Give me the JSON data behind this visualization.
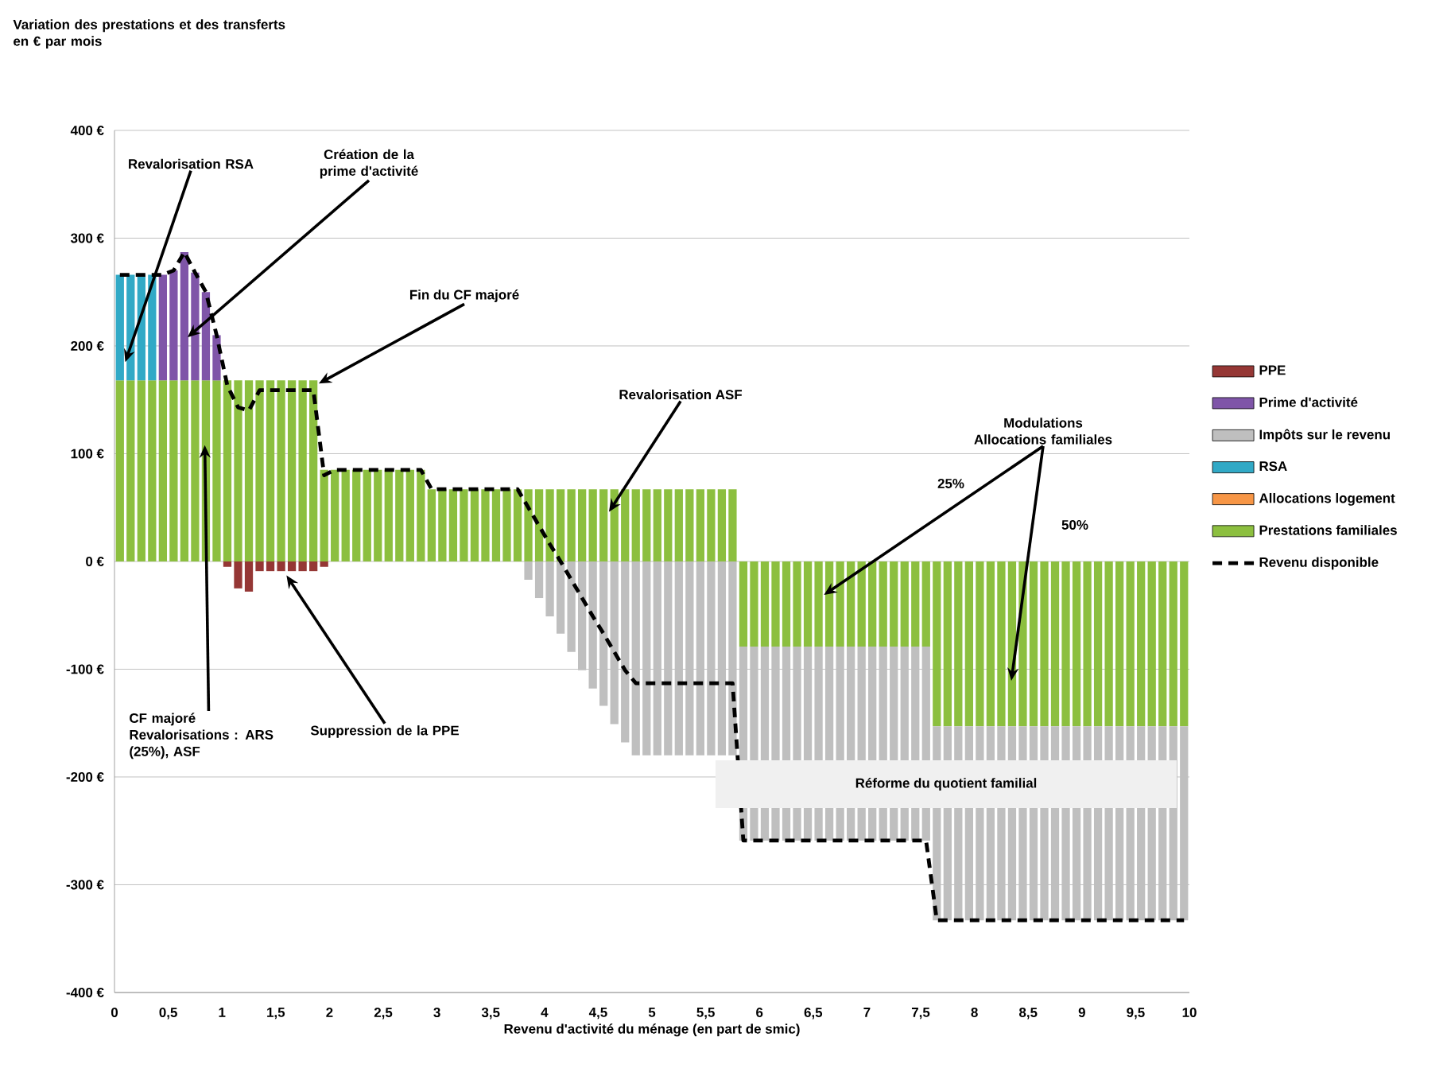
{
  "chart_data": {
    "type": "bar",
    "stacked": true,
    "title": "Variation des prestations et des transferts en € par mois",
    "xlabel": "Revenu d'activité du ménage (en part de smic)",
    "xlim": [
      0,
      10
    ],
    "ylim": [
      -400,
      400
    ],
    "xticks": [
      0,
      {
        "value": 0.5,
        "label": "0,5"
      },
      1,
      {
        "value": 1.5,
        "label": "1,5"
      },
      2,
      {
        "value": 2.5,
        "label": "2,5"
      },
      3,
      {
        "value": 3.5,
        "label": "3,5"
      },
      4,
      {
        "value": 4.5,
        "label": "4,5"
      },
      5,
      {
        "value": 5.5,
        "label": "5,5"
      },
      6,
      {
        "value": 6.5,
        "label": "6,5"
      },
      7,
      {
        "value": 7.5,
        "label": "7,5"
      },
      8,
      {
        "value": 8.5,
        "label": "8,5"
      },
      9,
      {
        "value": 9.5,
        "label": "9,5"
      },
      10
    ],
    "yticks": [
      {
        "value": -400,
        "label": "-400 €"
      },
      {
        "value": -300,
        "label": "-300 €"
      },
      {
        "value": -200,
        "label": "-200 €"
      },
      {
        "value": -100,
        "label": "-100 €"
      },
      {
        "value": 0,
        "label": "0 €"
      },
      {
        "value": 100,
        "label": "100 €"
      },
      {
        "value": 200,
        "label": "200 €"
      },
      {
        "value": 300,
        "label": "300 €"
      },
      {
        "value": 400,
        "label": "400 €"
      }
    ],
    "grid": "y",
    "legend": "right",
    "line_style": "dashed",
    "x": [
      0.05,
      0.15,
      0.25,
      0.35,
      0.45,
      0.55,
      0.65,
      0.75,
      0.85,
      0.95,
      1.05,
      1.15,
      1.25,
      1.35,
      1.45,
      1.55,
      1.65,
      1.75,
      1.85,
      1.95,
      2.05,
      2.15,
      2.25,
      2.35,
      2.45,
      2.55,
      2.65,
      2.75,
      2.85,
      2.95,
      3.05,
      3.15,
      3.25,
      3.35,
      3.45,
      3.55,
      3.65,
      3.75,
      3.85,
      3.95,
      4.05,
      4.15,
      4.25,
      4.35,
      4.45,
      4.55,
      4.65,
      4.75,
      4.85,
      4.95,
      5.05,
      5.15,
      5.25,
      5.35,
      5.45,
      5.55,
      5.65,
      5.75,
      5.85,
      5.95,
      6.05,
      6.15,
      6.25,
      6.35,
      6.45,
      6.55,
      6.65,
      6.75,
      6.85,
      6.95,
      7.05,
      7.15,
      7.25,
      7.35,
      7.45,
      7.55,
      7.65,
      7.75,
      7.85,
      7.95,
      8.05,
      8.15,
      8.25,
      8.35,
      8.45,
      8.55,
      8.65,
      8.75,
      8.85,
      8.95,
      9.05,
      9.15,
      9.25,
      9.35,
      9.45,
      9.55,
      9.65,
      9.75,
      9.85,
      9.95
    ],
    "series": [
      {
        "name": "Prestations familiales",
        "color": "#8cbf3f",
        "values": [
          168,
          168,
          168,
          168,
          168,
          168,
          168,
          168,
          168,
          168,
          168,
          168,
          168,
          168,
          168,
          168,
          168,
          168,
          168,
          85,
          85,
          85,
          85,
          85,
          85,
          85,
          85,
          85,
          85,
          67,
          67,
          67,
          67,
          67,
          67,
          67,
          67,
          67,
          67,
          67,
          67,
          67,
          67,
          67,
          67,
          67,
          67,
          67,
          67,
          67,
          67,
          67,
          67,
          67,
          67,
          67,
          67,
          67,
          -79,
          -79,
          -79,
          -79,
          -79,
          -79,
          -79,
          -79,
          -79,
          -79,
          -79,
          -79,
          -79,
          -79,
          -79,
          -79,
          -79,
          -79,
          -153,
          -153,
          -153,
          -153,
          -153,
          -153,
          -153,
          -153,
          -153,
          -153,
          -153,
          -153,
          -153,
          -153,
          -153,
          -153,
          -153,
          -153,
          -153,
          -153,
          -153,
          -153,
          -153,
          -153
        ]
      },
      {
        "name": "Allocations logement",
        "color": "#f79646",
        "values": [
          null,
          null,
          null,
          null,
          null,
          null,
          null,
          null,
          null,
          null,
          null,
          null,
          null,
          null,
          null,
          null,
          null,
          null,
          null,
          null,
          null,
          null,
          null,
          null,
          null,
          null,
          null,
          null,
          null,
          null,
          null,
          null,
          null,
          null,
          null,
          null,
          null,
          null,
          null,
          null,
          null,
          null,
          null,
          null,
          null,
          null,
          null,
          null,
          null,
          null,
          null,
          null,
          null,
          null,
          null,
          null,
          null,
          null,
          null,
          null,
          null,
          null,
          null,
          null,
          null,
          null,
          null,
          null,
          null,
          null,
          null,
          null,
          null,
          null,
          null,
          null,
          null,
          null,
          null,
          null,
          null,
          null,
          null,
          null,
          null,
          null,
          null,
          null,
          null,
          null,
          null,
          null,
          null,
          null,
          null,
          null,
          null,
          null,
          null,
          null
        ]
      },
      {
        "name": "RSA",
        "color": "#31a9c6",
        "values": [
          98,
          98,
          98,
          98,
          null,
          null,
          null,
          null,
          null,
          null,
          null,
          null,
          null,
          null,
          null,
          null,
          null,
          null,
          null,
          null,
          null,
          null,
          null,
          null,
          null,
          null,
          null,
          null,
          null,
          null,
          null,
          null,
          null,
          null,
          null,
          null,
          null,
          null,
          null,
          null,
          null,
          null,
          null,
          null,
          null,
          null,
          null,
          null,
          null,
          null,
          null,
          null,
          null,
          null,
          null,
          null,
          null,
          null,
          null,
          null,
          null,
          null,
          null,
          null,
          null,
          null,
          null,
          null,
          null,
          null,
          null,
          null,
          null,
          null,
          null,
          null,
          null,
          null,
          null,
          null,
          null,
          null,
          null,
          null,
          null,
          null,
          null,
          null,
          null,
          null,
          null,
          null,
          null,
          null,
          null,
          null,
          null,
          null,
          null,
          null
        ]
      },
      {
        "name": "Impôts sur le revenu",
        "color": "#bfbfbf",
        "values": [
          null,
          null,
          null,
          null,
          null,
          null,
          null,
          null,
          null,
          null,
          null,
          null,
          null,
          null,
          null,
          null,
          null,
          null,
          null,
          null,
          null,
          null,
          null,
          null,
          null,
          null,
          null,
          null,
          null,
          null,
          null,
          null,
          null,
          null,
          null,
          null,
          null,
          null,
          -17,
          -34,
          -51,
          -67,
          -84,
          -101,
          -118,
          -134,
          -151,
          -168,
          -180,
          -180,
          -180,
          -180,
          -180,
          -180,
          -180,
          -180,
          -180,
          -180,
          -180,
          -180,
          -180,
          -180,
          -180,
          -180,
          -180,
          -180,
          -180,
          -180,
          -180,
          -180,
          -180,
          -180,
          -180,
          -180,
          -180,
          -180,
          -180,
          -180,
          -180,
          -180,
          -180,
          -180,
          -180,
          -180,
          -180,
          -180,
          -180,
          -180,
          -180,
          -180,
          -180,
          -180,
          -180,
          -180,
          -180,
          -180,
          -180,
          -180,
          -180,
          -180
        ]
      },
      {
        "name": "Prime d'activité",
        "color": "#7f55a8",
        "values": [
          null,
          null,
          null,
          null,
          98,
          102,
          119,
          100,
          82,
          42,
          null,
          null,
          null,
          null,
          null,
          null,
          null,
          null,
          null,
          null,
          null,
          null,
          null,
          null,
          null,
          null,
          null,
          null,
          null,
          null,
          null,
          null,
          null,
          null,
          null,
          null,
          null,
          null,
          null,
          null,
          null,
          null,
          null,
          null,
          null,
          null,
          null,
          null,
          null,
          null,
          null,
          null,
          null,
          null,
          null,
          null,
          null,
          null,
          null,
          null,
          null,
          null,
          null,
          null,
          null,
          null,
          null,
          null,
          null,
          null,
          null,
          null,
          null,
          null,
          null,
          null,
          null,
          null,
          null,
          null,
          null,
          null,
          null,
          null,
          null,
          null,
          null,
          null,
          null,
          null,
          null,
          null,
          null,
          null,
          null,
          null,
          null,
          null,
          null,
          null
        ]
      },
      {
        "name": "PPE",
        "color": "#953735",
        "values": [
          null,
          null,
          null,
          null,
          null,
          null,
          null,
          null,
          null,
          null,
          -5,
          -25,
          -28,
          -9,
          -9,
          -9,
          -9,
          -9,
          -9,
          -5,
          null,
          null,
          null,
          null,
          null,
          null,
          null,
          null,
          null,
          null,
          null,
          null,
          null,
          null,
          null,
          null,
          null,
          null,
          null,
          null,
          null,
          null,
          null,
          null,
          null,
          null,
          null,
          null,
          null,
          null,
          null,
          null,
          null,
          null,
          null,
          null,
          null,
          null,
          null,
          null,
          null,
          null,
          null,
          null,
          null,
          null,
          null,
          null,
          null,
          null,
          null,
          null,
          null,
          null,
          null,
          null,
          null,
          null,
          null,
          null,
          null,
          null,
          null,
          null,
          null,
          null,
          null,
          null,
          null,
          null,
          null,
          null,
          null,
          null,
          null,
          null,
          null,
          null,
          null,
          null
        ]
      },
      {
        "name": "Revenu disponible",
        "type": "line",
        "color": "#000000",
        "values": [
          266,
          266,
          266,
          266,
          266,
          270,
          287,
          268,
          250,
          210,
          163,
          143,
          140,
          159,
          159,
          159,
          159,
          159,
          159,
          80,
          85,
          85,
          85,
          85,
          85,
          85,
          85,
          85,
          85,
          67,
          67,
          67,
          67,
          67,
          67,
          67,
          67,
          67,
          50,
          33,
          16,
          0,
          -17,
          -34,
          -51,
          -67,
          -84,
          -101,
          -113,
          -113,
          -113,
          -113,
          -113,
          -113,
          -113,
          -113,
          -113,
          -113,
          -259,
          -259,
          -259,
          -259,
          -259,
          -259,
          -259,
          -259,
          -259,
          -259,
          -259,
          -259,
          -259,
          -259,
          -259,
          -259,
          -259,
          -259,
          -333,
          -333,
          -333,
          -333,
          -333,
          -333,
          -333,
          -333,
          -333,
          -333,
          -333,
          -333,
          -333,
          -333,
          -333,
          -333,
          -333,
          -333,
          -333,
          -333,
          -333,
          -333,
          -333,
          -333
        ]
      }
    ],
    "annotations": [
      {
        "text": "Revalorisation RSA",
        "x": 0.1,
        "y": 185
      },
      {
        "text": "Création de la prime d'activité",
        "x": 0.68,
        "y": 208
      },
      {
        "text": "Fin du CF majoré",
        "x": 1.9,
        "y": 165
      },
      {
        "text": "Revalorisation ASF",
        "x": 4.6,
        "y": 46
      },
      {
        "text": "Modulations Allocations familiales",
        "x": 6.6,
        "y": -31
      },
      "25%",
      "50%",
      {
        "text": "CF majoré Revalorisations : ARS (25%), ASF",
        "x": 0.84,
        "y": 108
      },
      {
        "text": "Suppression de la PPE",
        "x": 1.6,
        "y": -13
      },
      "Réforme du quotient familial"
    ]
  }
}
